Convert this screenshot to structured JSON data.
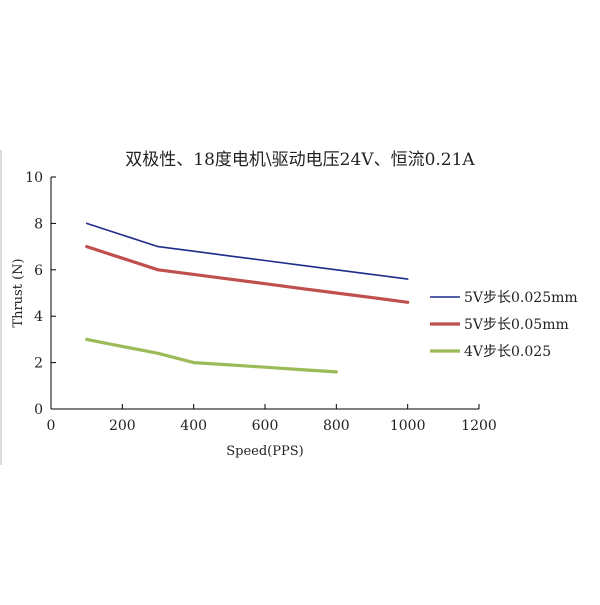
{
  "chart_data": {
    "type": "line",
    "title": "双极性、18度电机\\驱动电压24V、恒流0.21A",
    "xlabel": "Speed(PPS)",
    "ylabel": "Thrust (N)",
    "xlim": [
      0,
      1200
    ],
    "ylim": [
      0,
      10
    ],
    "xticks": [
      0,
      200,
      400,
      600,
      800,
      1000,
      1200
    ],
    "yticks": [
      0,
      2,
      4,
      6,
      8,
      10
    ],
    "grid": false,
    "legend_position": "right",
    "series": [
      {
        "name": "5V步长0.025mm",
        "color": "#1f2d8a",
        "x": [
          100,
          200,
          300,
          400,
          500,
          600,
          700,
          800,
          900,
          1000
        ],
        "y": [
          8.0,
          7.5,
          7.0,
          6.8,
          6.6,
          6.4,
          6.2,
          6.0,
          5.8,
          5.6
        ]
      },
      {
        "name": "5V步长0.05mm",
        "color": "#c0504d",
        "x": [
          100,
          200,
          300,
          400,
          500,
          600,
          700,
          800,
          900,
          1000
        ],
        "y": [
          7.0,
          6.5,
          6.0,
          5.8,
          5.6,
          5.4,
          5.2,
          5.0,
          4.8,
          4.6
        ]
      },
      {
        "name": "4V步长0.025",
        "color": "#9bbb59",
        "x": [
          100,
          200,
          300,
          400,
          500,
          600,
          700,
          800
        ],
        "y": [
          3.0,
          2.7,
          2.4,
          2.0,
          1.9,
          1.8,
          1.7,
          1.6
        ]
      }
    ]
  }
}
